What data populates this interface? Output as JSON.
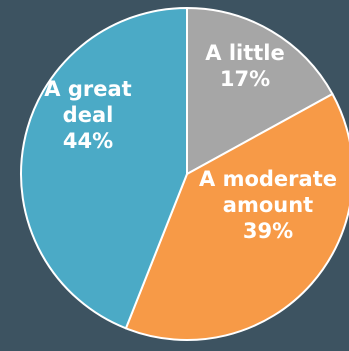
{
  "chart_data": {
    "type": "pie",
    "slices": [
      {
        "label": [
          "A little",
          "17%"
        ],
        "value": 17,
        "color": "#a6a6a6"
      },
      {
        "label": [
          "A moderate",
          "amount",
          "39%"
        ],
        "value": 39,
        "color": "#f79a47"
      },
      {
        "label": [
          "A great",
          "deal",
          "44%"
        ],
        "value": 44,
        "color": "#4baac6"
      }
    ],
    "start": "12 o'clock",
    "direction": "clockwise",
    "slice_border_color": "#ffffff"
  }
}
